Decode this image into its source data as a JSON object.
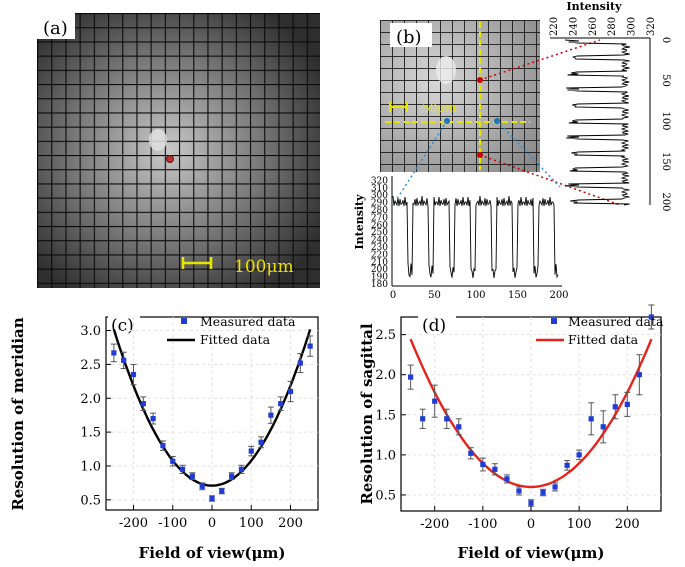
{
  "panels": {
    "a": {
      "label": "(a)",
      "scalebar_label": "100μm"
    },
    "b": {
      "label": "(b)",
      "scalebar_label": "50μm",
      "vertical_profile": {
        "axis_title": "Intensity",
        "axis_ticks": [
          "220",
          "240",
          "260",
          "280",
          "300",
          "320"
        ],
        "depth_ticks": [
          "0",
          "50",
          "100",
          "150",
          "200"
        ]
      },
      "horizontal_profile": {
        "axis_title": "Intensity",
        "y_ticks": [
          "180",
          "190",
          "200",
          "210",
          "220",
          "230",
          "240",
          "250",
          "260",
          "270",
          "280",
          "290",
          "300",
          "310",
          "320"
        ],
        "x_ticks": [
          "0",
          "50",
          "100",
          "150",
          "200"
        ]
      }
    }
  },
  "chart_data": [
    {
      "type": "scatter",
      "panel": "(c)",
      "xlabel": "Field of view(μm)",
      "ylabel": "Resolution of meridian",
      "xlim": [
        -270,
        270
      ],
      "ylim": [
        0.35,
        3.2
      ],
      "x_ticks": [
        -200,
        -100,
        0,
        100,
        200
      ],
      "y_ticks": [
        0.5,
        1.0,
        1.5,
        2.0,
        2.5,
        3.0
      ],
      "legend": [
        "Measured data",
        "Fitted data"
      ],
      "legend_position": "top-right",
      "series": [
        {
          "name": "Measured data",
          "x": [
            -250,
            -225,
            -200,
            -175,
            -150,
            -125,
            -100,
            -75,
            -50,
            -25,
            0,
            25,
            50,
            75,
            100,
            125,
            150,
            175,
            200,
            225,
            250
          ],
          "y": [
            2.67,
            2.56,
            2.35,
            1.92,
            1.7,
            1.3,
            1.07,
            0.95,
            0.85,
            0.7,
            0.52,
            0.63,
            0.85,
            0.95,
            1.22,
            1.35,
            1.75,
            1.92,
            2.1,
            2.52,
            2.77
          ],
          "err": [
            0.13,
            0.12,
            0.15,
            0.1,
            0.08,
            0.07,
            0.07,
            0.06,
            0.05,
            0.05,
            0.04,
            0.04,
            0.05,
            0.06,
            0.07,
            0.08,
            0.12,
            0.1,
            0.15,
            0.14,
            0.15
          ]
        },
        {
          "name": "Fitted data",
          "type": "line",
          "equation": "y = 0.71 + 3.69e-5 * x^2",
          "x_range": [
            -250,
            250
          ]
        }
      ],
      "colors": {
        "markers": "#1f3cd6",
        "fit": "#000000"
      }
    },
    {
      "type": "scatter",
      "panel": "(d)",
      "xlabel": "Field of view(μm)",
      "ylabel": "Resolution of sagittal",
      "xlim": [
        -270,
        270
      ],
      "ylim": [
        0.3,
        2.72
      ],
      "x_ticks": [
        -200,
        -100,
        0,
        100,
        200
      ],
      "y_ticks": [
        0.5,
        1.0,
        1.5,
        2.0,
        2.5
      ],
      "legend": [
        "Measured data",
        "Fitted data"
      ],
      "legend_position": "top-right",
      "series": [
        {
          "name": "Measured data",
          "x": [
            -250,
            -225,
            -200,
            -175,
            -150,
            -125,
            -100,
            -75,
            -50,
            -25,
            0,
            25,
            50,
            75,
            100,
            125,
            150,
            175,
            200,
            225,
            250
          ],
          "y": [
            1.97,
            1.45,
            1.67,
            1.45,
            1.35,
            1.02,
            0.88,
            0.82,
            0.7,
            0.55,
            0.4,
            0.53,
            0.6,
            0.87,
            1.0,
            1.45,
            1.35,
            1.6,
            1.63,
            2.0,
            2.72
          ],
          "err": [
            0.15,
            0.12,
            0.2,
            0.12,
            0.1,
            0.07,
            0.08,
            0.07,
            0.05,
            0.05,
            0.04,
            0.04,
            0.05,
            0.06,
            0.06,
            0.2,
            0.2,
            0.15,
            0.15,
            0.25,
            0.15
          ]
        },
        {
          "name": "Fitted data",
          "type": "line",
          "equation": "y = 0.60 + 2.95e-5 * x^2",
          "x_range": [
            -250,
            250
          ]
        }
      ],
      "colors": {
        "markers": "#1f3cd6",
        "fit": "#e8221a"
      }
    }
  ]
}
